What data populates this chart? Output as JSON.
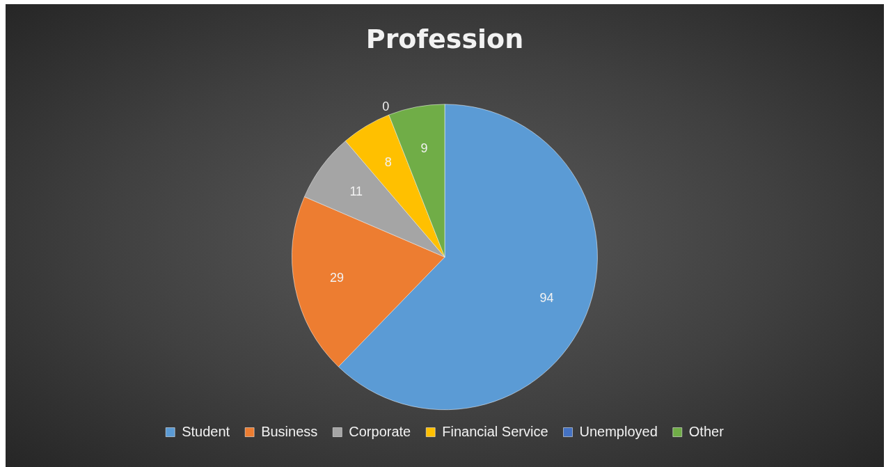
{
  "chart_data": {
    "type": "pie",
    "title": "Profession",
    "categories": [
      "Student",
      "Business",
      "Corporate",
      "Financial Service",
      "Unemployed",
      "Other"
    ],
    "values": [
      94,
      29,
      11,
      8,
      0,
      9
    ],
    "value_labels": [
      "94",
      "29",
      "11",
      "8",
      "0",
      "9"
    ],
    "colors": [
      "#5b9bd5",
      "#ed7d31",
      "#a5a5a5",
      "#ffc000",
      "#4472c4",
      "#70ad47"
    ],
    "legend": "bottom"
  }
}
